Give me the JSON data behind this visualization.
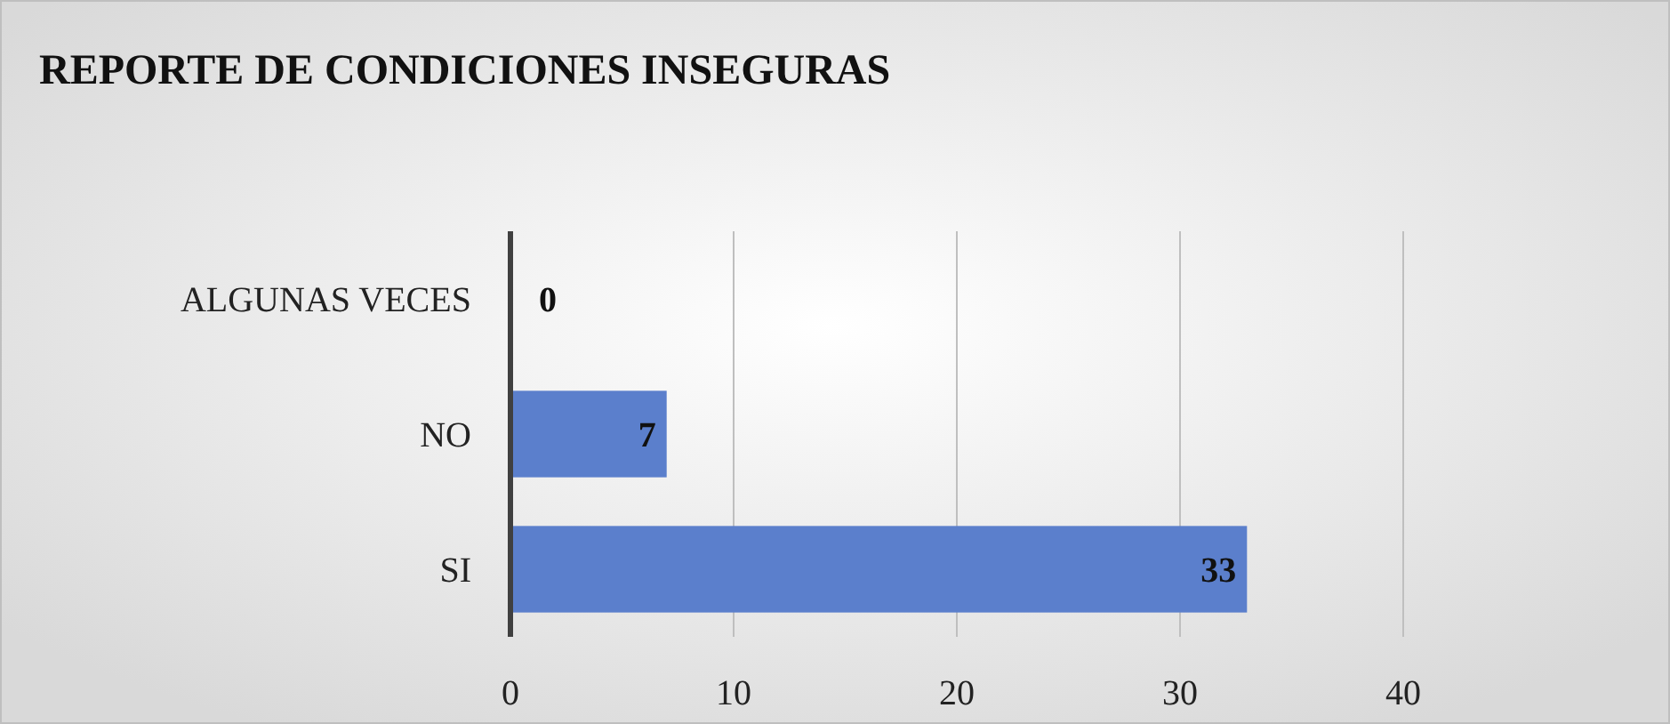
{
  "chart_data": {
    "type": "bar",
    "orientation": "horizontal",
    "title": "REPORTE DE CONDICIONES INSEGURAS",
    "categories": [
      "ALGUNAS VECES",
      "NO",
      "SI"
    ],
    "values": [
      0,
      7,
      33
    ],
    "color": "#5b7fcc",
    "xlim": [
      0,
      40
    ],
    "xticks": [
      0,
      10,
      20,
      30,
      40
    ],
    "grid": "x",
    "data_labels": true
  }
}
